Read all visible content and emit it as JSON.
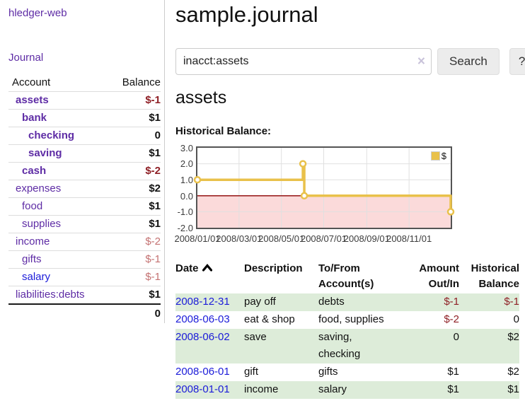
{
  "app": {
    "brand": "hledger-web",
    "nav_journal": "Journal"
  },
  "sidebar": {
    "table_headers": {
      "account": "Account",
      "balance": "Balance"
    },
    "accounts": [
      {
        "name": "assets",
        "depth": 1,
        "bold": true,
        "link_style": "visited",
        "balance": "$-1",
        "balance_style": "neg",
        "balance_bold": true
      },
      {
        "name": "bank",
        "depth": 2,
        "bold": true,
        "link_style": "visited",
        "balance": "$1",
        "balance_style": "pos",
        "balance_bold": true
      },
      {
        "name": "checking",
        "depth": 3,
        "bold": true,
        "link_style": "visited",
        "balance": "0",
        "balance_style": "pos",
        "balance_bold": true
      },
      {
        "name": "saving",
        "depth": 3,
        "bold": true,
        "link_style": "visited",
        "balance": "$1",
        "balance_style": "pos",
        "balance_bold": true
      },
      {
        "name": "cash",
        "depth": 2,
        "bold": true,
        "link_style": "visited",
        "balance": "$-2",
        "balance_style": "neg",
        "balance_bold": true
      },
      {
        "name": "expenses",
        "depth": 1,
        "bold": false,
        "link_style": "visited",
        "balance": "$2",
        "balance_style": "pos",
        "balance_bold": true
      },
      {
        "name": "food",
        "depth": 2,
        "bold": false,
        "link_style": "visited",
        "balance": "$1",
        "balance_style": "pos",
        "balance_bold": true
      },
      {
        "name": "supplies",
        "depth": 2,
        "bold": false,
        "link_style": "visited",
        "balance": "$1",
        "balance_style": "pos",
        "balance_bold": true
      },
      {
        "name": "income",
        "depth": 1,
        "bold": false,
        "link_style": "visited",
        "balance": "$-2",
        "balance_style": "negweak",
        "balance_bold": false
      },
      {
        "name": "gifts",
        "depth": 2,
        "bold": false,
        "link_style": "visited",
        "balance": "$-1",
        "balance_style": "negweak",
        "balance_bold": false
      },
      {
        "name": "salary",
        "depth": 2,
        "bold": false,
        "link_style": "unvisited",
        "balance": "$-1",
        "balance_style": "negweak",
        "balance_bold": false
      },
      {
        "name": "liabilities:debts",
        "depth": 1,
        "bold": false,
        "link_style": "visited",
        "balance": "$1",
        "balance_style": "pos",
        "balance_bold": true
      }
    ],
    "total": "0"
  },
  "header": {
    "title": "sample.journal"
  },
  "search": {
    "value": "inacct:assets",
    "clear_icon": "×",
    "button_label": "Search",
    "help_label": "?"
  },
  "account_page": {
    "heading": "assets",
    "chart_label": "Historical Balance:"
  },
  "chart_data": {
    "type": "line",
    "style": "step",
    "title": "Historical Balance",
    "series": [
      {
        "name": "$",
        "color": "#e9c14b",
        "points": [
          [
            "2008-01-01",
            1
          ],
          [
            "2008-06-01",
            2
          ],
          [
            "2008-06-03",
            0
          ],
          [
            "2008-12-31",
            -1
          ]
        ]
      }
    ],
    "x_range": [
      "2008-01-01",
      "2008-12-31"
    ],
    "x_ticks": [
      "2008/01/01",
      "2008/03/01",
      "2008/05/01",
      "2008/07/01",
      "2008/09/01",
      "2008/11/01"
    ],
    "y_ticks": [
      "3.0",
      "2.0",
      "1.0",
      "0.0",
      "-1.0",
      "-2.0"
    ],
    "ylim": [
      -2,
      3
    ],
    "grid": true,
    "gridline_color": "#e0e0e0",
    "negative_region_fill": "#fbdada",
    "zero_line_color": "#8b0000",
    "legend": {
      "position": "top-right",
      "label": "$"
    }
  },
  "register": {
    "columns": [
      {
        "key": "date",
        "label": "Date",
        "align": "left",
        "sort_icon": "chevron-up"
      },
      {
        "key": "description",
        "label": "Description",
        "align": "left"
      },
      {
        "key": "accounts",
        "label": "To/From Account(s)",
        "align": "left"
      },
      {
        "key": "amount",
        "label": "Amount Out/In",
        "align": "right"
      },
      {
        "key": "balance",
        "label": "Historical Balance",
        "align": "right"
      }
    ],
    "rows": [
      {
        "date": "2008-12-31",
        "description": "pay off",
        "accounts": "debts",
        "amount": "$-1",
        "amount_negative": true,
        "balance": "$-1",
        "balance_negative": true,
        "shaded": true
      },
      {
        "date": "2008-06-03",
        "description": "eat & shop",
        "accounts": "food, supplies",
        "amount": "$-2",
        "amount_negative": true,
        "balance": "0",
        "balance_negative": false,
        "shaded": false
      },
      {
        "date": "2008-06-02",
        "description": "save",
        "accounts": "saving, checking",
        "amount": "0",
        "amount_negative": false,
        "balance": "$2",
        "balance_negative": false,
        "shaded": true
      },
      {
        "date": "2008-06-01",
        "description": "gift",
        "accounts": "gifts",
        "amount": "$1",
        "amount_negative": false,
        "balance": "$2",
        "balance_negative": false,
        "shaded": false
      },
      {
        "date": "2008-01-01",
        "description": "income",
        "accounts": "salary",
        "amount": "$1",
        "amount_negative": false,
        "balance": "$1",
        "balance_negative": false,
        "shaded": true
      }
    ]
  }
}
